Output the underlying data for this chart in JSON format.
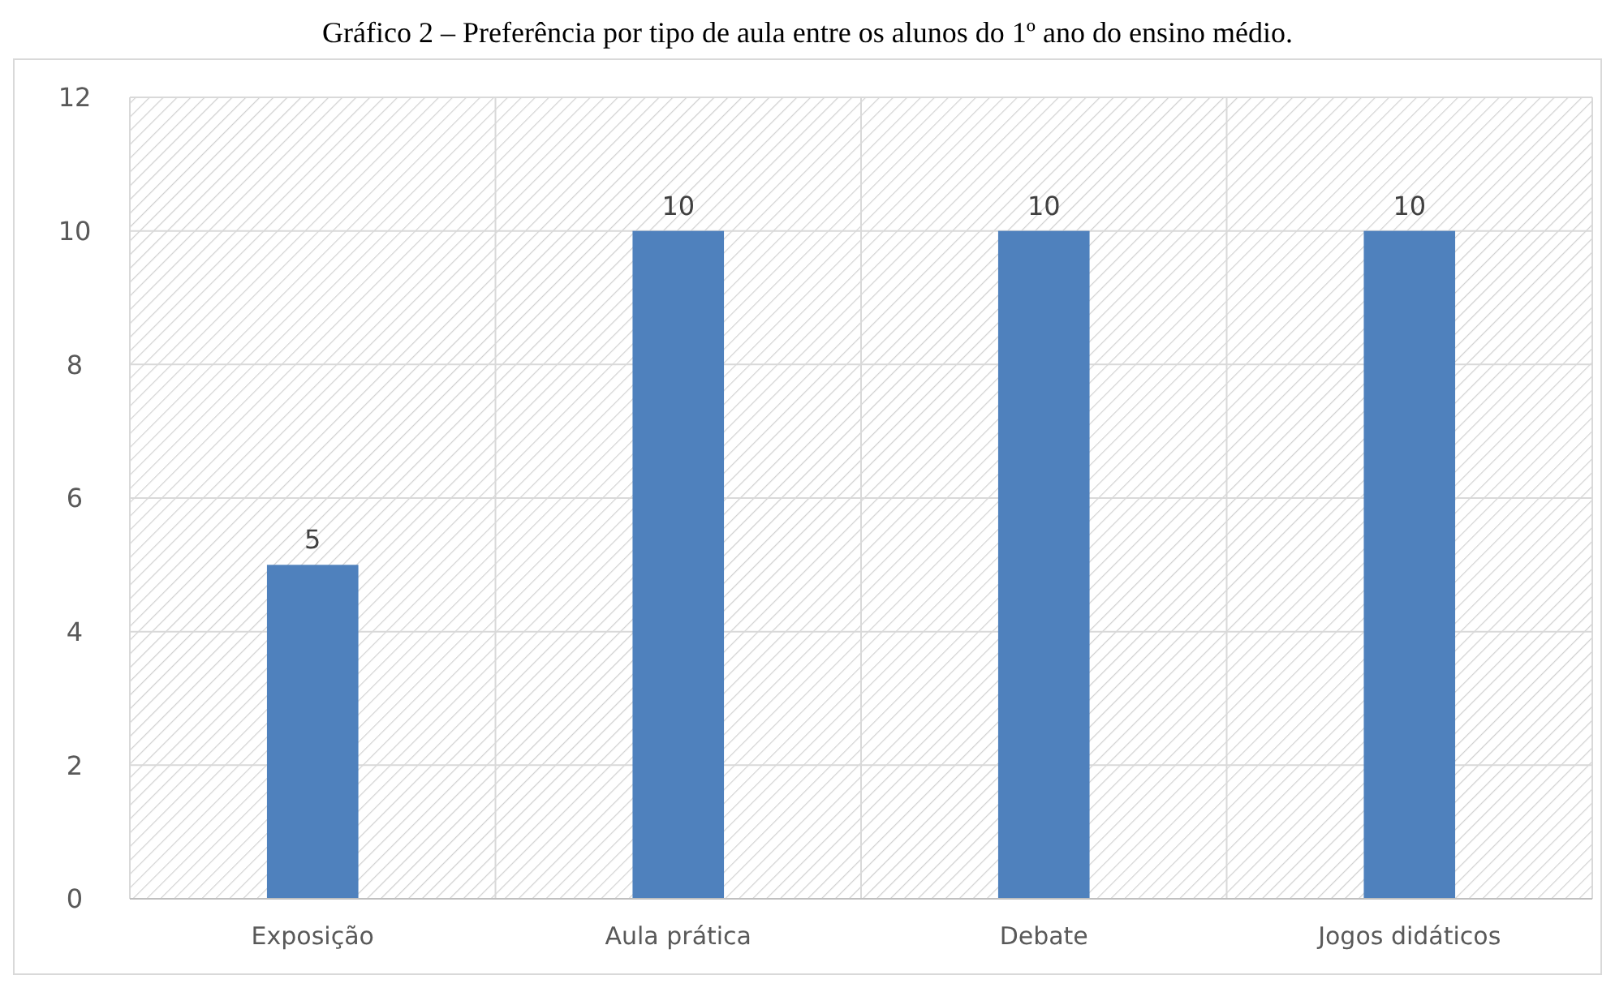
{
  "chart_data": {
    "type": "bar",
    "title": "Gráfico 2 – Preferência por tipo de aula entre os alunos do 1º ano do ensino médio.",
    "categories": [
      "Exposição",
      "Aula prática",
      "Debate",
      "Jogos didáticos"
    ],
    "values": [
      5,
      10,
      10,
      10
    ],
    "color": "#4f81bd",
    "ylim": [
      0,
      12
    ],
    "yticks": [
      0,
      2,
      4,
      6,
      8,
      10,
      12
    ],
    "grid": true,
    "data_labels": true
  }
}
